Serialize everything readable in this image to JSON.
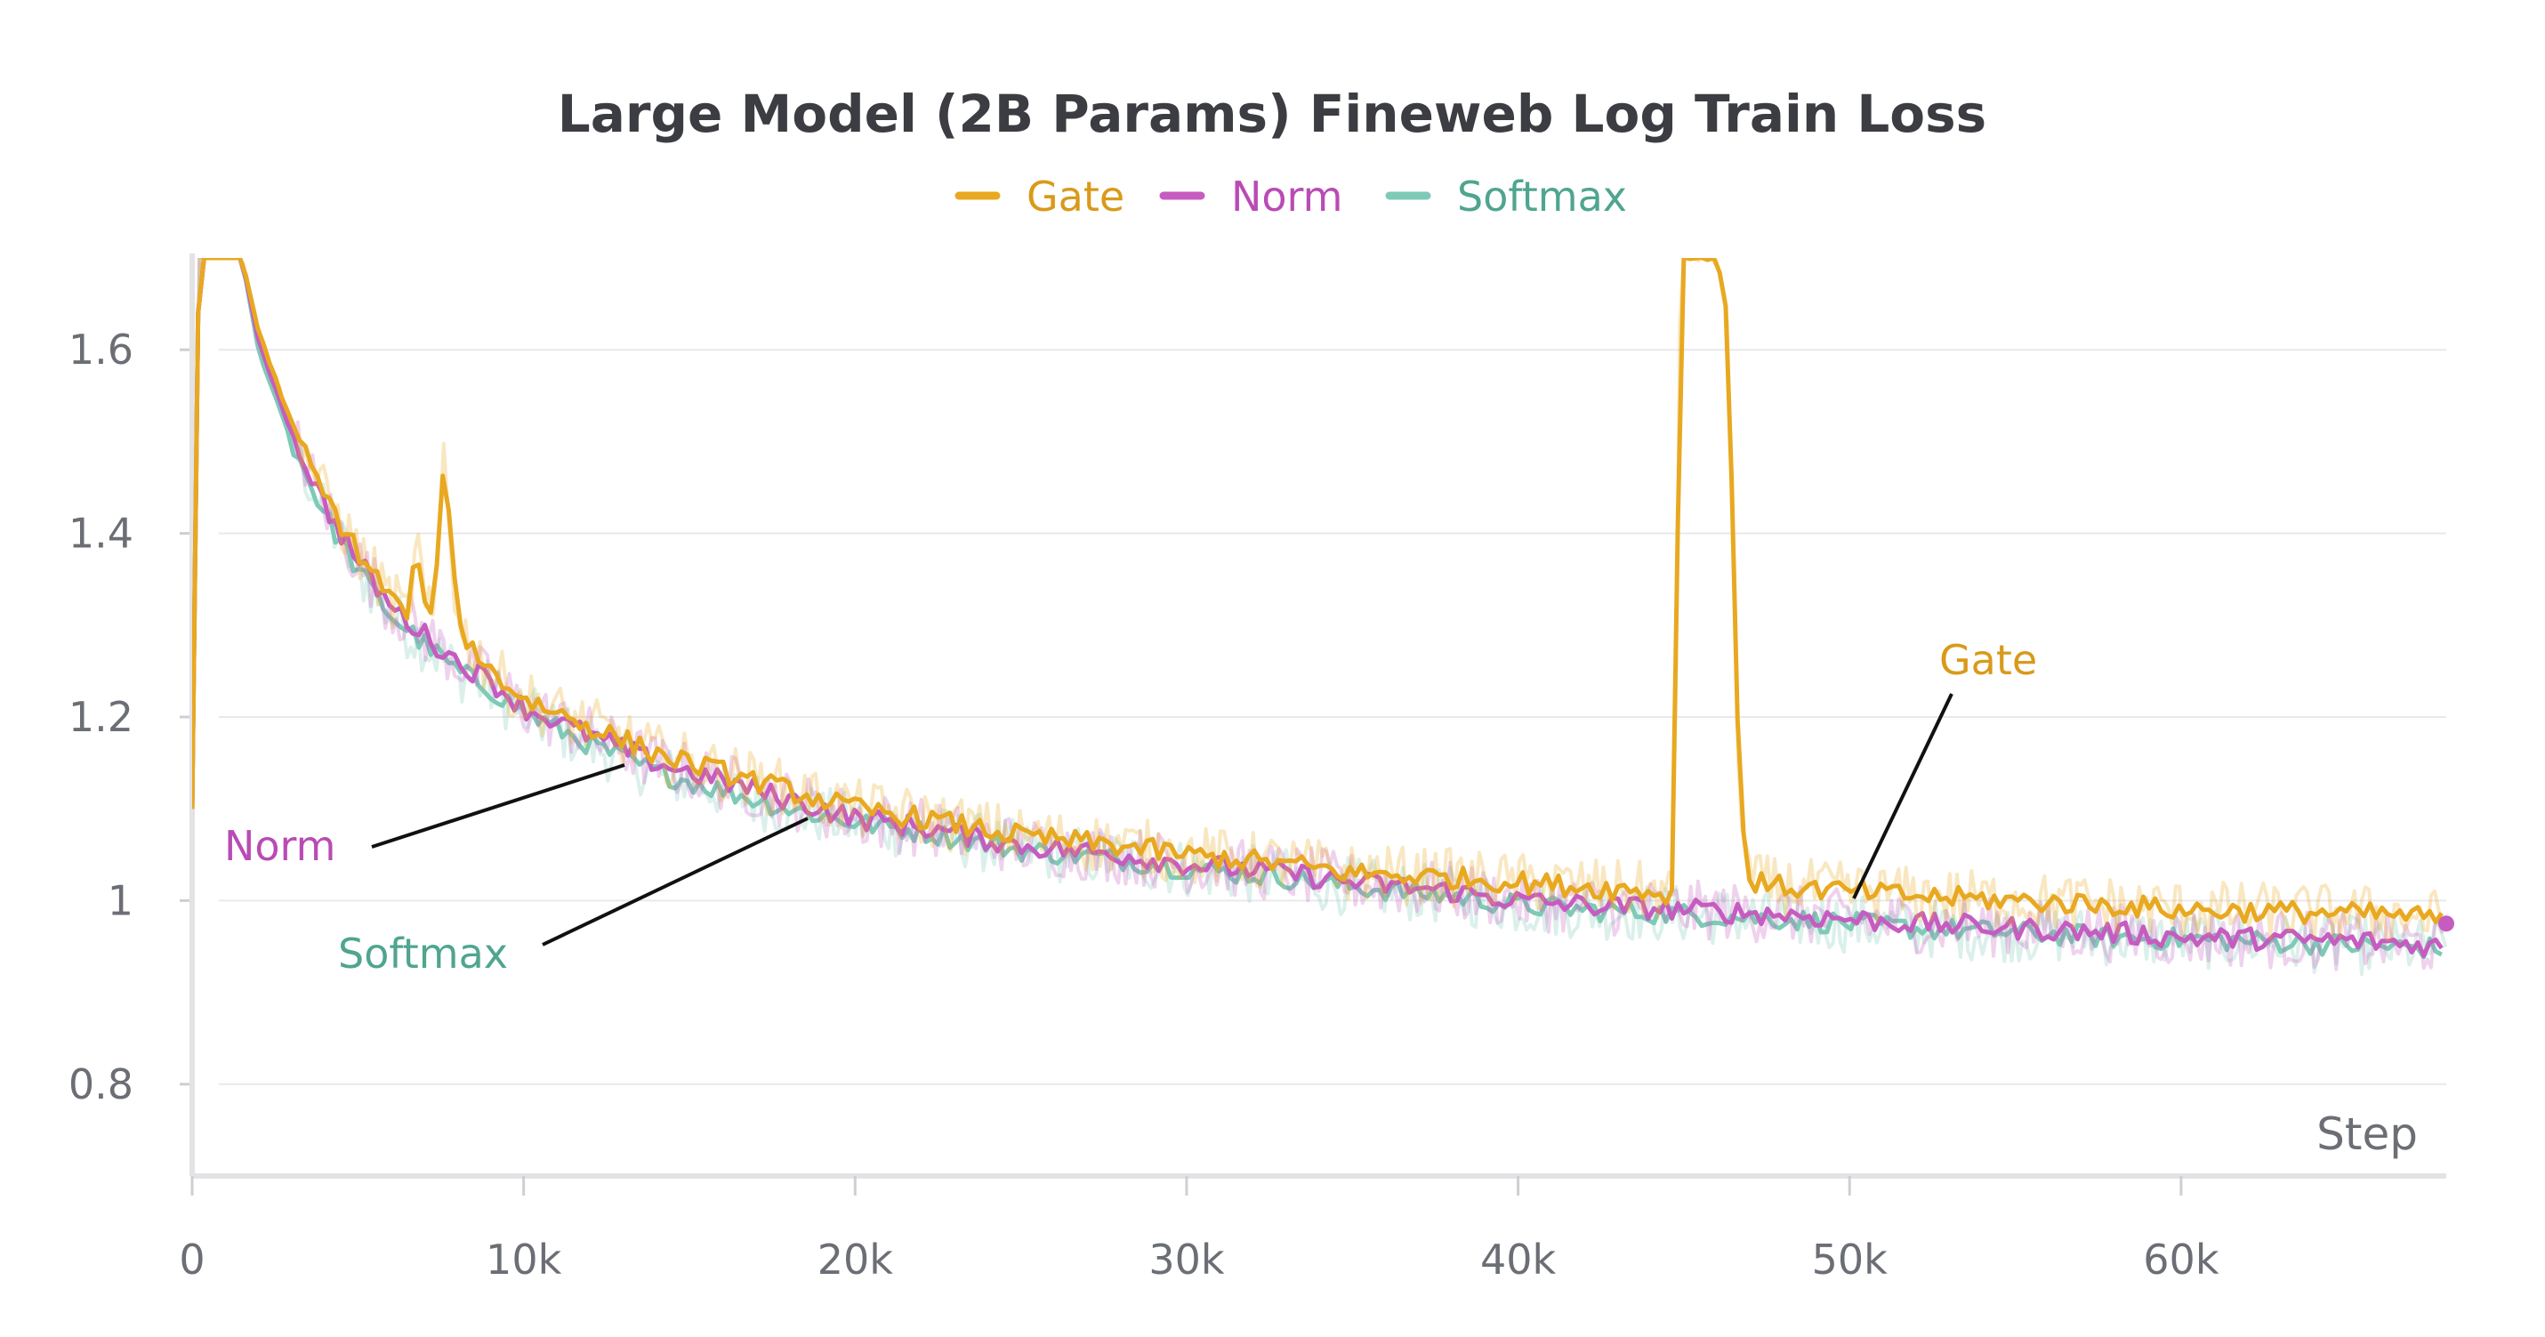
{
  "chart_data": {
    "type": "line",
    "title": "Large Model (2B Params) Fineweb Log Train Loss",
    "xlabel": "Step",
    "ylabel": "",
    "xlim": [
      0,
      68000
    ],
    "ylim": [
      0.7,
      1.7
    ],
    "x_ticks": [
      {
        "value": 0,
        "label": "0"
      },
      {
        "value": 10000,
        "label": "10k"
      },
      {
        "value": 20000,
        "label": "20k"
      },
      {
        "value": 30000,
        "label": "30k"
      },
      {
        "value": 40000,
        "label": "40k"
      },
      {
        "value": 50000,
        "label": "50k"
      },
      {
        "value": 60000,
        "label": "60k"
      }
    ],
    "y_ticks": [
      {
        "value": 0.8,
        "label": "0.8"
      },
      {
        "value": 1.0,
        "label": "1"
      },
      {
        "value": 1.2,
        "label": "1.2"
      },
      {
        "value": 1.4,
        "label": "1.4"
      },
      {
        "value": 1.6,
        "label": "1.6"
      }
    ],
    "grid": true,
    "legend_position": "top-center",
    "series": [
      {
        "name": "Gate",
        "color": "#e8a820",
        "label_color": "#d99a1a",
        "x": [
          0,
          200,
          1500,
          2000,
          3000,
          4000,
          5000,
          6000,
          6500,
          6800,
          7000,
          7300,
          7600,
          8000,
          9000,
          10000,
          12000,
          14000,
          16000,
          18000,
          20000,
          22000,
          25000,
          28000,
          30000,
          33000,
          35000,
          38000,
          40000,
          42000,
          44000,
          44700,
          44900,
          45500,
          46000,
          46300,
          46700,
          47000,
          48000,
          50000,
          52000,
          55000,
          58000,
          60000,
          63000,
          66000,
          68000
        ],
        "y": [
          1.1,
          1.7,
          1.7,
          1.62,
          1.52,
          1.44,
          1.38,
          1.33,
          1.31,
          1.39,
          1.32,
          1.3,
          1.5,
          1.3,
          1.25,
          1.22,
          1.19,
          1.16,
          1.14,
          1.12,
          1.1,
          1.09,
          1.07,
          1.06,
          1.05,
          1.04,
          1.03,
          1.025,
          1.02,
          1.015,
          1.01,
          1.005,
          1.7,
          1.7,
          1.7,
          1.64,
          1.1,
          1.02,
          1.015,
          1.01,
          1.005,
          1.0,
          0.995,
          0.99,
          0.988,
          0.985,
          0.98
        ]
      },
      {
        "name": "Norm",
        "color": "#c65cc0",
        "label_color": "#b94bb5",
        "x": [
          0,
          200,
          1500,
          2000,
          3000,
          4000,
          5000,
          6000,
          7000,
          8000,
          9000,
          10000,
          12000,
          14000,
          16000,
          18000,
          20000,
          22000,
          25000,
          28000,
          30000,
          33000,
          35000,
          38000,
          40000,
          42000,
          45000,
          48000,
          50000,
          52000,
          55000,
          58000,
          60000,
          63000,
          66000,
          68000
        ],
        "y": [
          1.1,
          1.7,
          1.7,
          1.61,
          1.51,
          1.43,
          1.37,
          1.32,
          1.29,
          1.26,
          1.24,
          1.21,
          1.18,
          1.15,
          1.13,
          1.11,
          1.09,
          1.08,
          1.06,
          1.05,
          1.04,
          1.03,
          1.02,
          1.01,
          1.0,
          0.995,
          0.99,
          0.985,
          0.98,
          0.975,
          0.97,
          0.965,
          0.96,
          0.958,
          0.955,
          0.95
        ]
      },
      {
        "name": "Softmax",
        "color": "#7ecab7",
        "label_color": "#4fa58f",
        "x": [
          0,
          200,
          1500,
          2000,
          3000,
          4000,
          5000,
          6000,
          7000,
          8000,
          9000,
          10000,
          12000,
          14000,
          16000,
          18000,
          20000,
          22000,
          25000,
          28000,
          30000,
          33000,
          35000,
          38000,
          40000,
          42000,
          45000,
          48000,
          50000,
          52000,
          55000,
          58000,
          60000,
          63000,
          66000,
          68000
        ],
        "y": [
          1.1,
          1.7,
          1.7,
          1.6,
          1.5,
          1.42,
          1.36,
          1.31,
          1.28,
          1.25,
          1.23,
          1.205,
          1.17,
          1.14,
          1.12,
          1.1,
          1.085,
          1.075,
          1.055,
          1.045,
          1.035,
          1.025,
          1.015,
          1.005,
          0.995,
          0.99,
          0.985,
          0.98,
          0.975,
          0.97,
          0.965,
          0.96,
          0.958,
          0.955,
          0.95,
          0.948
        ]
      }
    ],
    "annotations": [
      {
        "text": "Norm",
        "series": "Norm"
      },
      {
        "text": "Softmax",
        "series": "Softmax"
      },
      {
        "text": "Gate",
        "series": "Gate"
      }
    ]
  }
}
